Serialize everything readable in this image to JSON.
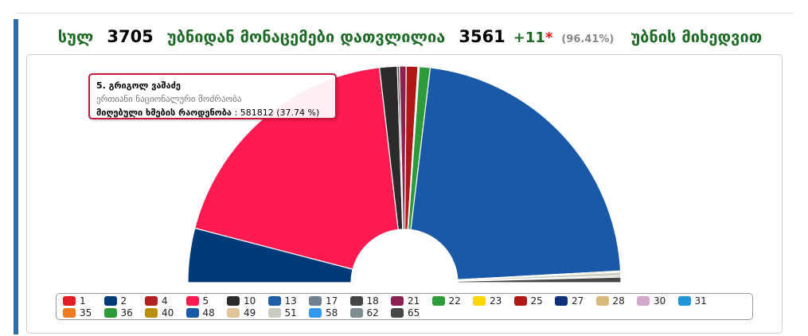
{
  "header": {
    "total_label": "სულ",
    "total_value": "3705",
    "middle_text": "უბნიდან მონაცემები დათვლილია",
    "counted_value": "3561",
    "plus_value": "+11",
    "star": "*",
    "percent": "(96.41%)",
    "suffix_text": "უბნის მიხედვით"
  },
  "tooltip": {
    "name": "5. გრიგოლ ვაშაძე",
    "party": "ერთიანი ნაციონალური მოძრაობა",
    "votes_label": "მიღებული ხმების რაოდენობა",
    "votes_value": ": 581812 (37.74 %)"
  },
  "chart_data": {
    "type": "pie",
    "variant": "semicircle",
    "series": [
      {
        "name": "1",
        "value": 0.0,
        "color": "#e31b23"
      },
      {
        "name": "2",
        "value": 8.0,
        "color": "#003a78"
      },
      {
        "name": "4",
        "value": 0.0,
        "color": "#b22222"
      },
      {
        "name": "5",
        "value": 37.74,
        "color": "#ff1a4f"
      },
      {
        "name": "10",
        "value": 2.6,
        "color": "#2b2b2b"
      },
      {
        "name": "13",
        "value": 0.0,
        "color": "#1f5fa8"
      },
      {
        "name": "17",
        "value": 0.0,
        "color": "#708090"
      },
      {
        "name": "18",
        "value": 0.3,
        "color": "#444444"
      },
      {
        "name": "21",
        "value": 1.0,
        "color": "#8b2252"
      },
      {
        "name": "22",
        "value": 0.0,
        "color": "#2e9b3b"
      },
      {
        "name": "23",
        "value": 0.0,
        "color": "#ffd700"
      },
      {
        "name": "25",
        "value": 1.7,
        "color": "#b01818"
      },
      {
        "name": "27",
        "value": 0.0,
        "color": "#10307a"
      },
      {
        "name": "28",
        "value": 0.1,
        "color": "#d8b97a"
      },
      {
        "name": "30",
        "value": 0.1,
        "color": "#d4a8cc"
      },
      {
        "name": "31",
        "value": 0.0,
        "color": "#2196d6"
      },
      {
        "name": "35",
        "value": 0.0,
        "color": "#f07a20"
      },
      {
        "name": "36",
        "value": 1.6,
        "color": "#2e9b3b"
      },
      {
        "name": "40",
        "value": 0.0,
        "color": "#b8900a"
      },
      {
        "name": "48",
        "value": 43.9,
        "color": "#1959a8"
      },
      {
        "name": "49",
        "value": 0.2,
        "color": "#e2c49a"
      },
      {
        "name": "51",
        "value": 0.5,
        "color": "#c9ccc0"
      },
      {
        "name": "58",
        "value": 0.0,
        "color": "#3399ee"
      },
      {
        "name": "62",
        "value": 0.2,
        "color": "#7f8c8d"
      },
      {
        "name": "65",
        "value": 0.8,
        "color": "#474747"
      }
    ]
  }
}
